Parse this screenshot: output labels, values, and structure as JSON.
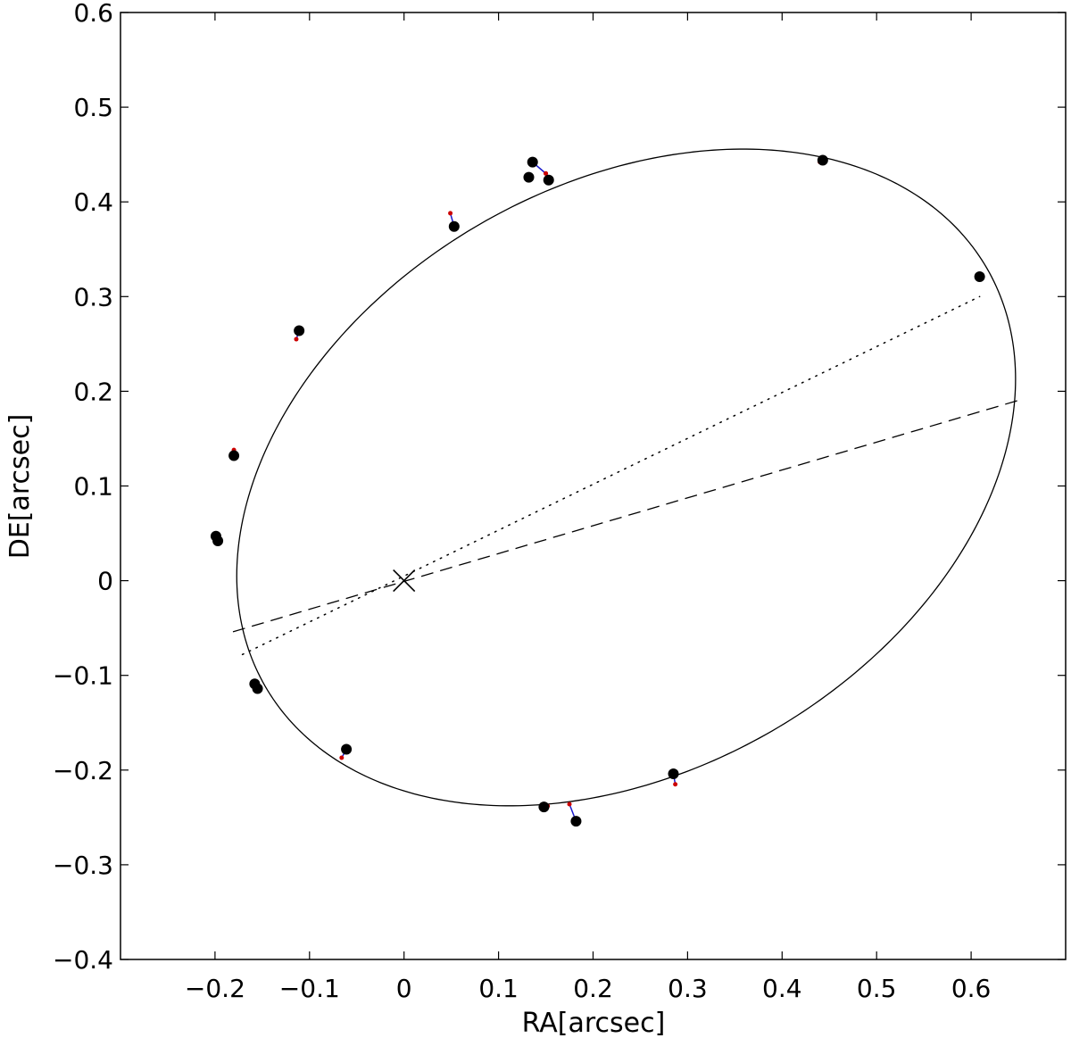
{
  "chart_data": {
    "type": "scatter",
    "title": "",
    "xlabel": "RA[arcsec]",
    "ylabel": "DE[arcsec]",
    "xlim": [
      -0.3,
      0.7
    ],
    "ylim": [
      -0.4,
      0.6
    ],
    "x_ticks": [
      -0.2,
      -0.1,
      0,
      0.1,
      0.2,
      0.3,
      0.4,
      0.5,
      0.6
    ],
    "x_tick_labels": [
      "−0.2",
      "−0.1",
      "0",
      "0.1",
      "0.2",
      "0.3",
      "0.4",
      "0.5",
      "0.6"
    ],
    "y_ticks": [
      -0.4,
      -0.3,
      -0.2,
      -0.1,
      0,
      0.1,
      0.2,
      0.3,
      0.4,
      0.5,
      0.6
    ],
    "y_tick_labels": [
      "−0.4",
      "−0.3",
      "−0.2",
      "−0.1",
      "0",
      "0.1",
      "0.2",
      "0.3",
      "0.4",
      "0.5",
      "0.6"
    ],
    "grid": false,
    "legend": "none",
    "observed_positions": [
      {
        "x": 0.443,
        "y": 0.444,
        "fit_x": 0.44,
        "fit_y": 0.442
      },
      {
        "x": 0.609,
        "y": 0.321,
        "fit_x": 0.609,
        "fit_y": 0.321
      },
      {
        "x": 0.136,
        "y": 0.442,
        "fit_x": 0.15,
        "fit_y": 0.43
      },
      {
        "x": 0.132,
        "y": 0.426,
        "fit_x": 0.134,
        "fit_y": 0.428
      },
      {
        "x": 0.153,
        "y": 0.423,
        "fit_x": 0.15,
        "fit_y": 0.43
      },
      {
        "x": 0.053,
        "y": 0.374,
        "fit_x": 0.049,
        "fit_y": 0.388
      },
      {
        "x": -0.111,
        "y": 0.264,
        "fit_x": -0.114,
        "fit_y": 0.255
      },
      {
        "x": -0.18,
        "y": 0.132,
        "fit_x": -0.18,
        "fit_y": 0.138
      },
      {
        "x": -0.199,
        "y": 0.047,
        "fit_x": -0.199,
        "fit_y": 0.047
      },
      {
        "x": -0.197,
        "y": 0.042,
        "fit_x": -0.197,
        "fit_y": 0.042
      },
      {
        "x": -0.158,
        "y": -0.109,
        "fit_x": -0.153,
        "fit_y": -0.112
      },
      {
        "x": -0.155,
        "y": -0.114,
        "fit_x": -0.153,
        "fit_y": -0.112
      },
      {
        "x": -0.061,
        "y": -0.178,
        "fit_x": -0.066,
        "fit_y": -0.187
      },
      {
        "x": 0.148,
        "y": -0.239,
        "fit_x": 0.152,
        "fit_y": -0.238
      },
      {
        "x": 0.182,
        "y": -0.254,
        "fit_x": 0.175,
        "fit_y": -0.236
      },
      {
        "x": 0.285,
        "y": -0.204,
        "fit_x": 0.287,
        "fit_y": -0.215
      }
    ],
    "orbit_ellipse": {
      "center_x": 0.235,
      "center_y": 0.109,
      "semi_major": 0.441,
      "semi_minor": 0.309,
      "angle_deg": 30
    },
    "primary_star": {
      "x": 0,
      "y": 0,
      "marker": "x"
    },
    "line_of_nodes": {
      "style": "dashed",
      "x": [
        -0.181,
        0.652
      ],
      "y": [
        -0.054,
        0.191
      ]
    },
    "line_of_apsides": {
      "style": "dotted",
      "x": [
        -0.171,
        0.609
      ],
      "y": [
        -0.078,
        0.3
      ]
    },
    "colors": {
      "orbit": "#000000",
      "observed": "#000000",
      "fit_point": "#cc0000",
      "residual": "#1a1acc"
    }
  }
}
